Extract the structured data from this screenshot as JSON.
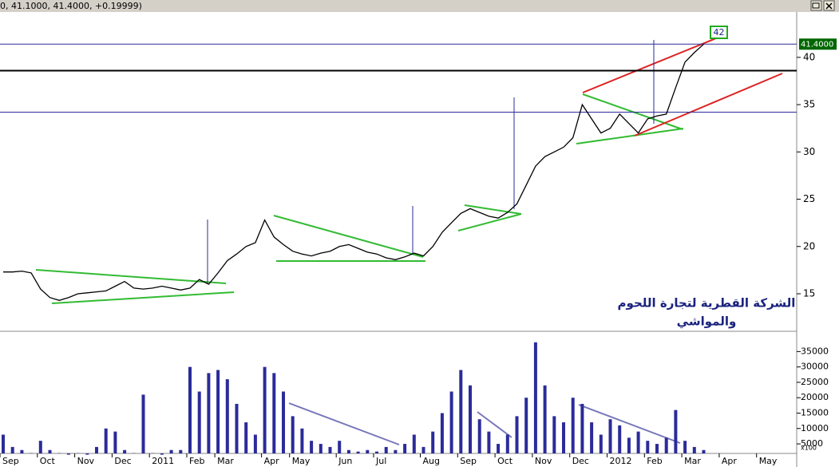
{
  "chart_data": [
    {
      "type": "line",
      "header": "0, 41.1000, 41.4000, +0.19999)",
      "annotation": [
        "الشركة القطرية لتجارة اللحوم",
        "والمواشي"
      ],
      "target_label": "42",
      "last_price": {
        "value": 41.4,
        "label": "41.4000"
      },
      "levels": [
        38.6,
        34.2
      ],
      "color": "#000000",
      "ylim": [
        11.2,
        44.8
      ],
      "yticks": [
        15,
        20,
        25,
        30,
        35,
        40
      ],
      "values": [
        17.3,
        17.3,
        17.4,
        17.2,
        15.5,
        14.6,
        14.3,
        14.6,
        15.0,
        15.1,
        15.2,
        15.3,
        15.8,
        16.3,
        15.6,
        15.5,
        15.6,
        15.8,
        15.6,
        15.4,
        15.6,
        16.5,
        16.0,
        17.2,
        18.5,
        19.2,
        20.0,
        20.4,
        22.8,
        21.0,
        20.2,
        19.5,
        19.2,
        19.0,
        19.3,
        19.5,
        20.0,
        20.2,
        19.8,
        19.4,
        19.2,
        18.8,
        18.6,
        18.9,
        19.3,
        19.0,
        20.0,
        21.5,
        22.5,
        23.5,
        24.0,
        23.6,
        23.2,
        23.0,
        23.6,
        24.5,
        26.5,
        28.5,
        29.5,
        30.0,
        30.5,
        31.5,
        35.0,
        33.5,
        32.0,
        32.5,
        34.0,
        33.0,
        32.0,
        33.5,
        33.8,
        34.0,
        36.8,
        39.5,
        40.5,
        41.4,
        null,
        null,
        null,
        null,
        null,
        null,
        null,
        null,
        null
      ]
    },
    {
      "type": "bar",
      "color": "#2b2b9a",
      "y_unit": "x100",
      "ylim": [
        1900,
        40800
      ],
      "yticks": [
        5000,
        10000,
        15000,
        20000,
        25000,
        30000,
        35000
      ],
      "categories": [
        "Sep",
        null,
        null,
        null,
        "Oct",
        null,
        null,
        null,
        "Nov",
        null,
        null,
        null,
        "Dec",
        null,
        null,
        null,
        "2011",
        null,
        null,
        null,
        "Feb",
        null,
        null,
        "Mar",
        null,
        null,
        null,
        null,
        "Apr",
        null,
        null,
        "May",
        null,
        null,
        null,
        null,
        "Jun",
        null,
        null,
        null,
        "Jul",
        null,
        null,
        null,
        null,
        "Aug",
        null,
        null,
        null,
        "Sep",
        null,
        null,
        null,
        "Oct",
        null,
        null,
        null,
        "Nov",
        null,
        null,
        null,
        "Dec",
        null,
        null,
        null,
        "2012",
        null,
        null,
        null,
        "Feb",
        null,
        null,
        null,
        "Mar",
        null,
        null,
        null,
        "Apr",
        null,
        null,
        null,
        "May",
        null,
        null,
        null
      ],
      "values": [
        8000,
        4000,
        3000,
        2000,
        6000,
        3000,
        2000,
        1500,
        2000,
        1500,
        4000,
        10000,
        9000,
        3000,
        2000,
        21000,
        2000,
        1500,
        3000,
        3000,
        30000,
        22000,
        28000,
        29000,
        26000,
        18000,
        12000,
        8000,
        30000,
        28000,
        22000,
        14000,
        10000,
        6000,
        5000,
        4000,
        6000,
        3000,
        2500,
        3000,
        2500,
        4000,
        3000,
        5000,
        8000,
        4000,
        9000,
        15000,
        22000,
        29000,
        24000,
        13000,
        9000,
        5000,
        8000,
        14000,
        20000,
        38000,
        24000,
        14000,
        12000,
        20000,
        18000,
        12000,
        8000,
        13000,
        11000,
        7000,
        9000,
        6000,
        5000,
        7000,
        16000,
        6000,
        4000,
        3000,
        null,
        null,
        null,
        null,
        null,
        null,
        null,
        null,
        null
      ]
    }
  ]
}
